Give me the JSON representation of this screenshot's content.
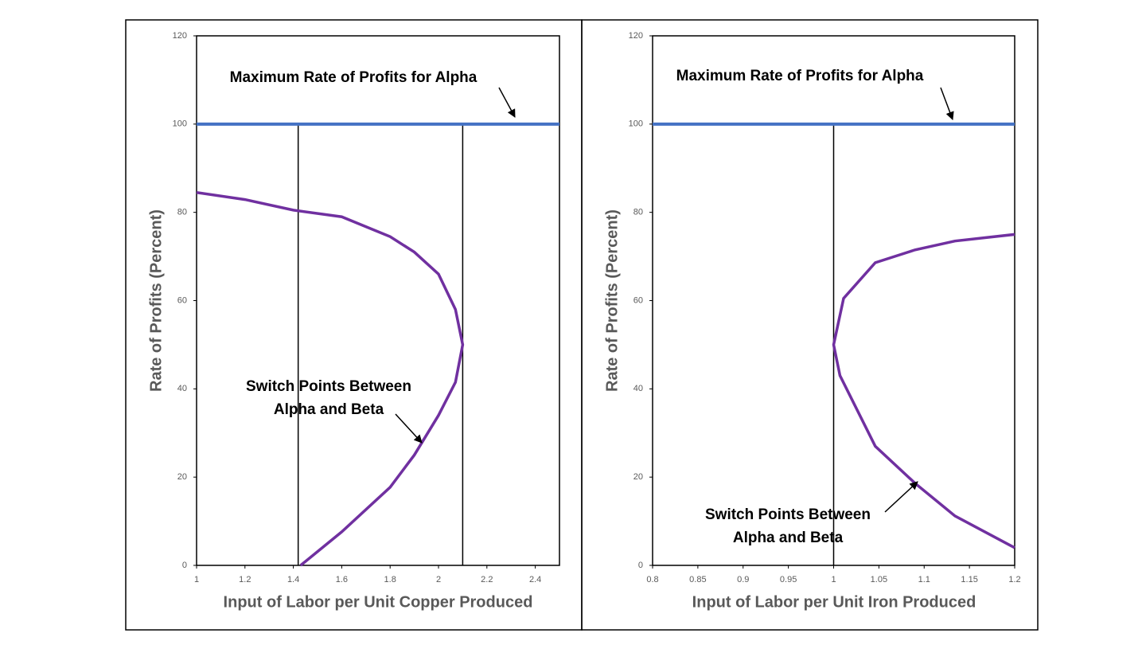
{
  "chart_data": [
    {
      "type": "line",
      "xlabel": "Input of Labor per Unit Copper Produced",
      "ylabel": "Rate of Profits (Percent)",
      "xlim": [
        1,
        2.5
      ],
      "xticks": [
        1,
        1.2,
        1.4,
        1.6,
        1.8,
        2,
        2.2,
        2.4
      ],
      "ylim": [
        0,
        120
      ],
      "yticks": [
        0,
        20,
        40,
        60,
        80,
        100,
        120
      ],
      "hline": {
        "value": 100,
        "color": "#4472c4"
      },
      "vlines": [
        1.42,
        2.1
      ],
      "series": [
        {
          "color": "#7030a0",
          "x": [
            1.43,
            1.6,
            1.8,
            1.9,
            2.0,
            2.07,
            2.1,
            2.07,
            2.0,
            1.9,
            1.8,
            1.6,
            1.4,
            1.2,
            1
          ],
          "values": [
            0,
            7.6,
            17.7,
            25,
            34,
            41.5,
            50,
            58,
            66,
            71,
            74.5,
            79,
            80.5,
            82.9,
            84.5
          ]
        }
      ],
      "annotations": [
        {
          "text": [
            "Maximum Rate of Profits for Alpha"
          ]
        },
        {
          "text": [
            "Switch Points Between",
            "Alpha and Beta"
          ]
        }
      ]
    },
    {
      "type": "line",
      "xlabel": "Input of Labor per Unit Iron Produced",
      "ylabel": "Rate of Profits (Percent)",
      "xlim": [
        0.8,
        1.2
      ],
      "xticks": [
        0.8,
        0.85,
        0.9,
        0.95,
        1,
        1.05,
        1.1,
        1.15,
        1.2
      ],
      "ylim": [
        0,
        120
      ],
      "yticks": [
        0,
        20,
        40,
        60,
        80,
        100,
        120
      ],
      "hline": {
        "value": 100,
        "color": "#4472c4"
      },
      "vlines": [
        1
      ],
      "series": [
        {
          "color": "#7030a0",
          "x": [
            1.2,
            1.134,
            1.09,
            1.046,
            1.007,
            1.0,
            1.011,
            1.046,
            1.09,
            1.134,
            1.2
          ],
          "values": [
            4,
            11.2,
            18.6,
            27,
            43,
            50,
            60.5,
            68.6,
            71.5,
            73.5,
            75
          ]
        }
      ],
      "annotations": [
        {
          "text": [
            "Maximum Rate of Profits for Alpha"
          ]
        },
        {
          "text": [
            "Switch Points Between",
            "Alpha and Beta"
          ]
        }
      ]
    }
  ]
}
